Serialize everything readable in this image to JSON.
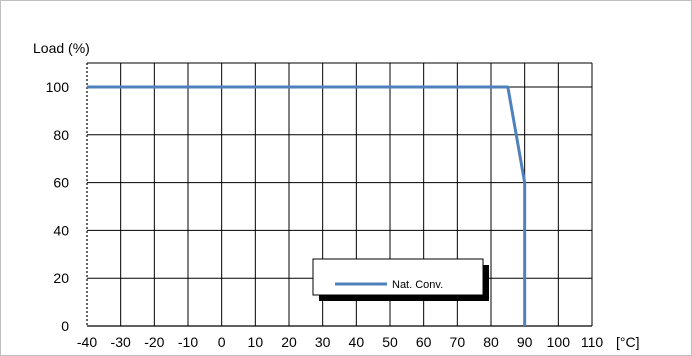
{
  "chart_data": {
    "type": "line",
    "title": "",
    "ylabel": "Load (%)",
    "xlabel": "[°C]",
    "xlim": [
      -40,
      110
    ],
    "ylim": [
      0,
      100
    ],
    "x_ticks": [
      -40,
      -30,
      -20,
      -10,
      0,
      10,
      20,
      30,
      40,
      50,
      60,
      70,
      80,
      90,
      100,
      110
    ],
    "y_ticks": [
      0,
      20,
      40,
      60,
      80,
      100
    ],
    "grid": true,
    "legend_placement": "bottom-right",
    "series": [
      {
        "name": "Nat. Conv.",
        "color": "#4f81bd",
        "x": [
          -40,
          85,
          90,
          90
        ],
        "y": [
          100,
          100,
          60,
          0
        ]
      }
    ]
  }
}
